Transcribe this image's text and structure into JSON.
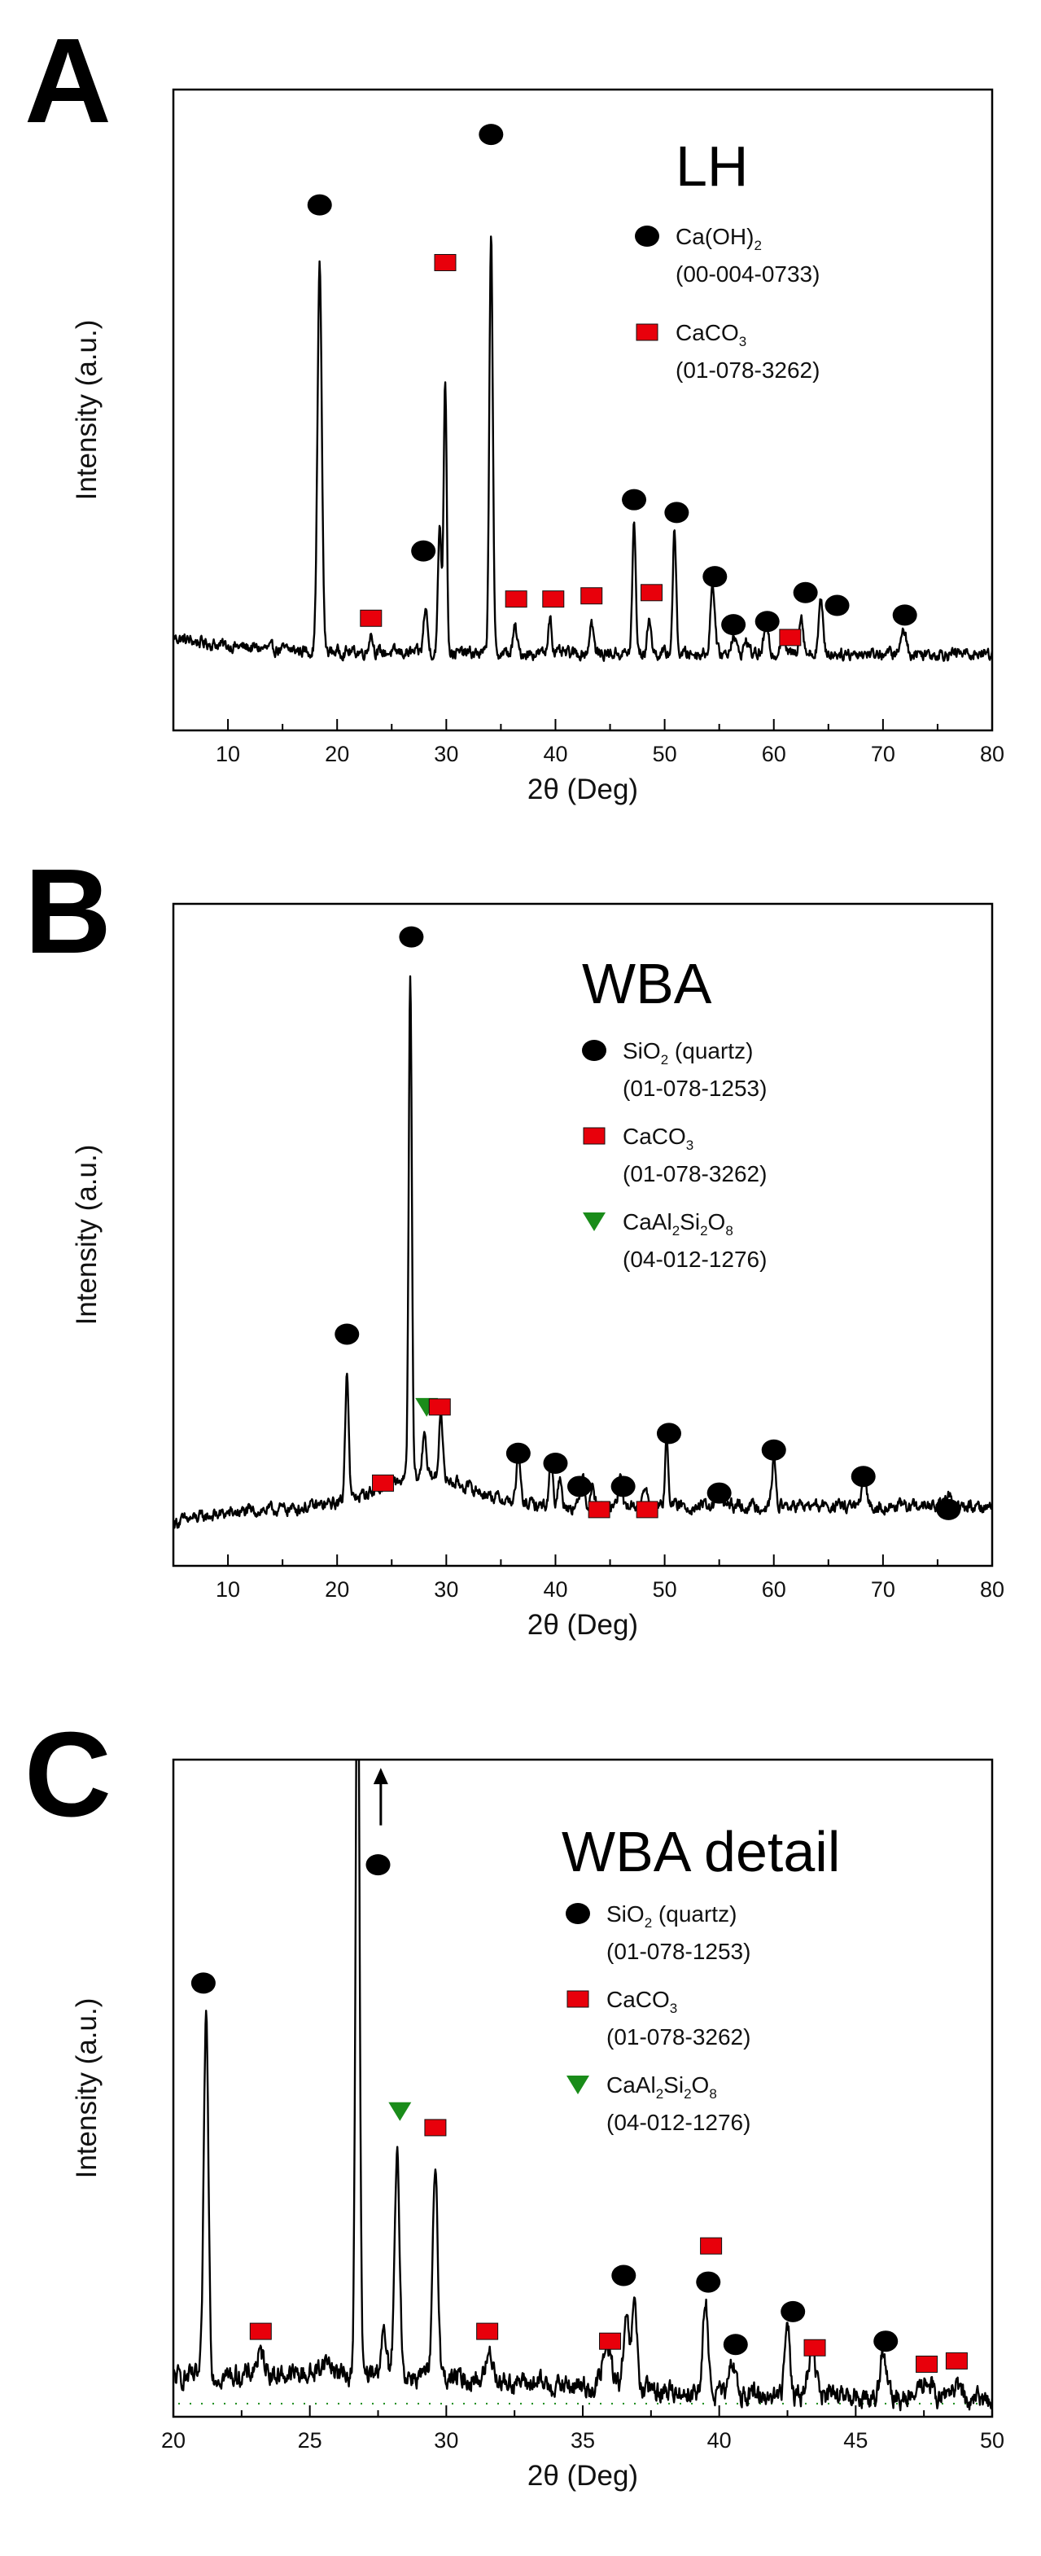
{
  "colors": {
    "axis": "#000000",
    "trace": "#000000",
    "ca_oh2_marker": "#000000",
    "caco3_marker": "#e8000b",
    "sio2_marker": "#000000",
    "anorthite_marker": "#1a8c1a"
  },
  "chart_data": [
    {
      "id": "A",
      "type": "line",
      "panel_letter": "A",
      "sample_label": "LH",
      "xlabel": "2θ (Deg)",
      "ylabel": "Intensity (a.u.)",
      "xlim": [
        5,
        80
      ],
      "ylim": [
        0,
        100
      ],
      "xticks": [
        10,
        20,
        30,
        40,
        50,
        60,
        70,
        80
      ],
      "baseline": 12,
      "peaks": [
        [
          18.4,
          60,
          0.28
        ],
        [
          23.1,
          3,
          0.25
        ],
        [
          28.1,
          7,
          0.25
        ],
        [
          29.4,
          20,
          0.22
        ],
        [
          29.9,
          43,
          0.2
        ],
        [
          34.1,
          66,
          0.22
        ],
        [
          36.3,
          4,
          0.25
        ],
        [
          39.5,
          6,
          0.22
        ],
        [
          43.3,
          5,
          0.25
        ],
        [
          47.2,
          20,
          0.22
        ],
        [
          48.6,
          6,
          0.22
        ],
        [
          50.9,
          19,
          0.22
        ],
        [
          54.4,
          11,
          0.28
        ],
        [
          56.3,
          3,
          0.3
        ],
        [
          57.5,
          2,
          0.3
        ],
        [
          59.3,
          4,
          0.3
        ],
        [
          60.8,
          3,
          0.3
        ],
        [
          62.5,
          6,
          0.28
        ],
        [
          64.3,
          8,
          0.28
        ],
        [
          71.9,
          4,
          0.3
        ]
      ],
      "legend": [
        {
          "marker": "circle",
          "name": "Ca(OH)",
          "sub": "2",
          "name_after": "",
          "ref": "(00-004-0733)"
        },
        {
          "marker": "square",
          "name": "CaCO",
          "sub": "3",
          "name_after": "",
          "ref": "(01-078-3262)"
        }
      ],
      "markers": [
        {
          "type": "circle",
          "x": 18.4,
          "y": 82
        },
        {
          "type": "square",
          "x": 29.9,
          "y": 73
        },
        {
          "type": "circle",
          "x": 34.1,
          "y": 93
        },
        {
          "type": "circle",
          "x": 27.9,
          "y": 28
        },
        {
          "type": "square",
          "x": 23.1,
          "y": 17.5
        },
        {
          "type": "square",
          "x": 36.4,
          "y": 20.5
        },
        {
          "type": "square",
          "x": 39.8,
          "y": 20.5
        },
        {
          "type": "square",
          "x": 43.3,
          "y": 21
        },
        {
          "type": "circle",
          "x": 47.2,
          "y": 36
        },
        {
          "type": "circle",
          "x": 51.1,
          "y": 34
        },
        {
          "type": "square",
          "x": 48.8,
          "y": 21.5
        },
        {
          "type": "circle",
          "x": 54.6,
          "y": 24
        },
        {
          "type": "circle",
          "x": 56.3,
          "y": 16.5
        },
        {
          "type": "circle",
          "x": 59.4,
          "y": 17
        },
        {
          "type": "square",
          "x": 61.5,
          "y": 14.5
        },
        {
          "type": "circle",
          "x": 62.9,
          "y": 21.5
        },
        {
          "type": "circle",
          "x": 65.8,
          "y": 19.5
        },
        {
          "type": "circle",
          "x": 72.0,
          "y": 18
        }
      ]
    },
    {
      "id": "B",
      "type": "line",
      "panel_letter": "B",
      "sample_label": "WBA",
      "xlabel": "2θ (Deg)",
      "ylabel": "Intensity (a.u.)",
      "xlim": [
        5,
        80
      ],
      "ylim": [
        0,
        100
      ],
      "xticks": [
        10,
        20,
        30,
        40,
        50,
        60,
        70,
        80
      ],
      "baseline": 9,
      "peaks": [
        [
          20.9,
          20,
          0.22
        ],
        [
          26.7,
          76,
          0.2
        ],
        [
          28.0,
          7,
          0.25
        ],
        [
          29.5,
          11,
          0.22
        ],
        [
          36.6,
          7,
          0.25
        ],
        [
          39.6,
          8,
          0.22
        ],
        [
          40.4,
          4,
          0.25
        ],
        [
          42.5,
          5,
          0.25
        ],
        [
          43.4,
          3,
          0.25
        ],
        [
          45.9,
          4,
          0.25
        ],
        [
          48.2,
          3,
          0.25
        ],
        [
          50.2,
          10,
          0.22
        ],
        [
          55.0,
          3,
          0.3
        ],
        [
          60.0,
          7,
          0.25
        ],
        [
          68.3,
          4,
          0.3
        ],
        [
          76.0,
          2,
          0.3
        ]
      ],
      "legend": [
        {
          "marker": "circle",
          "name": "SiO",
          "sub": "2",
          "name_after": " (quartz)",
          "ref": "(01-078-1253)"
        },
        {
          "marker": "square",
          "name": "CaCO",
          "sub": "3",
          "name_after": "",
          "ref": "(01-078-3262)"
        },
        {
          "marker": "triangle",
          "name": "CaAl",
          "sub": "2",
          "name_after": "Si",
          "sub2": "2",
          "name_after2": "O",
          "sub3": "8",
          "ref": "(04-012-1276)"
        }
      ],
      "markers": [
        {
          "type": "circle",
          "x": 26.8,
          "y": 95
        },
        {
          "type": "circle",
          "x": 20.9,
          "y": 35
        },
        {
          "type": "triangle",
          "x": 28.2,
          "y": 24
        },
        {
          "type": "square",
          "x": 29.4,
          "y": 24
        },
        {
          "type": "square",
          "x": 24.2,
          "y": 12.5
        },
        {
          "type": "circle",
          "x": 36.6,
          "y": 17
        },
        {
          "type": "circle",
          "x": 40.0,
          "y": 15.5
        },
        {
          "type": "circle",
          "x": 42.2,
          "y": 12
        },
        {
          "type": "square",
          "x": 44.0,
          "y": 8.5
        },
        {
          "type": "circle",
          "x": 46.2,
          "y": 12
        },
        {
          "type": "square",
          "x": 48.4,
          "y": 8.5
        },
        {
          "type": "circle",
          "x": 50.4,
          "y": 20
        },
        {
          "type": "circle",
          "x": 55.0,
          "y": 11
        },
        {
          "type": "circle",
          "x": 60.0,
          "y": 17.5
        },
        {
          "type": "circle",
          "x": 68.2,
          "y": 13.5
        },
        {
          "type": "circle",
          "x": 76.0,
          "y": 8.5
        }
      ]
    },
    {
      "id": "C",
      "type": "line",
      "panel_letter": "C",
      "sample_label": "WBA detail",
      "xlabel": "2θ (Deg)",
      "ylabel": "Intensity (a.u.)",
      "xlim": [
        20,
        50
      ],
      "ylim": [
        0,
        100
      ],
      "xticks": [
        20,
        25,
        30,
        35,
        40,
        45,
        50
      ],
      "baseline": 5,
      "dotted_baseline": 2,
      "peaks": [
        [
          21.2,
          55,
          0.12
        ],
        [
          23.2,
          3,
          0.25
        ],
        [
          25.6,
          2,
          0.3
        ],
        [
          26.75,
          120,
          0.1
        ],
        [
          27.7,
          6,
          0.15
        ],
        [
          28.2,
          33,
          0.13
        ],
        [
          29.6,
          32,
          0.13
        ],
        [
          31.6,
          4,
          0.2
        ],
        [
          35.9,
          6,
          0.25
        ],
        [
          36.6,
          10,
          0.15
        ],
        [
          36.9,
          13,
          0.13
        ],
        [
          39.5,
          14,
          0.13
        ],
        [
          40.5,
          5,
          0.15
        ],
        [
          42.5,
          12,
          0.13
        ],
        [
          43.4,
          7,
          0.2
        ],
        [
          46.0,
          7,
          0.15
        ],
        [
          47.6,
          3,
          0.25
        ],
        [
          48.6,
          2,
          0.25
        ]
      ],
      "legend": [
        {
          "marker": "circle",
          "name": "SiO",
          "sub": "2",
          "name_after": " (quartz)",
          "ref": "(01-078-1253)"
        },
        {
          "marker": "square",
          "name": "CaCO",
          "sub": "3",
          "name_after": "",
          "ref": "(01-078-3262)"
        },
        {
          "marker": "triangle",
          "name": "CaAl",
          "sub": "2",
          "name_after": "Si",
          "sub2": "2",
          "name_after2": "O",
          "sub3": "8",
          "ref": "(04-012-1276)"
        }
      ],
      "markers": [
        {
          "type": "circle",
          "x": 21.1,
          "y": 66
        },
        {
          "type": "circle",
          "x": 27.5,
          "y": 84
        },
        {
          "type": "triangle",
          "x": 28.3,
          "y": 46.5
        },
        {
          "type": "square",
          "x": 29.6,
          "y": 44
        },
        {
          "type": "square",
          "x": 23.2,
          "y": 13
        },
        {
          "type": "square",
          "x": 31.5,
          "y": 13
        },
        {
          "type": "circle",
          "x": 36.5,
          "y": 21.5
        },
        {
          "type": "square",
          "x": 36.0,
          "y": 11.5
        },
        {
          "type": "square",
          "x": 39.7,
          "y": 26
        },
        {
          "type": "circle",
          "x": 39.6,
          "y": 20.5
        },
        {
          "type": "circle",
          "x": 40.6,
          "y": 11
        },
        {
          "type": "circle",
          "x": 42.7,
          "y": 16
        },
        {
          "type": "square",
          "x": 43.5,
          "y": 10.5
        },
        {
          "type": "circle",
          "x": 46.1,
          "y": 11.5
        },
        {
          "type": "square",
          "x": 47.6,
          "y": 8
        },
        {
          "type": "square",
          "x": 48.7,
          "y": 8.5
        }
      ],
      "arrow": {
        "x": 27.6,
        "y_from": 90,
        "y_to": 98
      }
    }
  ]
}
